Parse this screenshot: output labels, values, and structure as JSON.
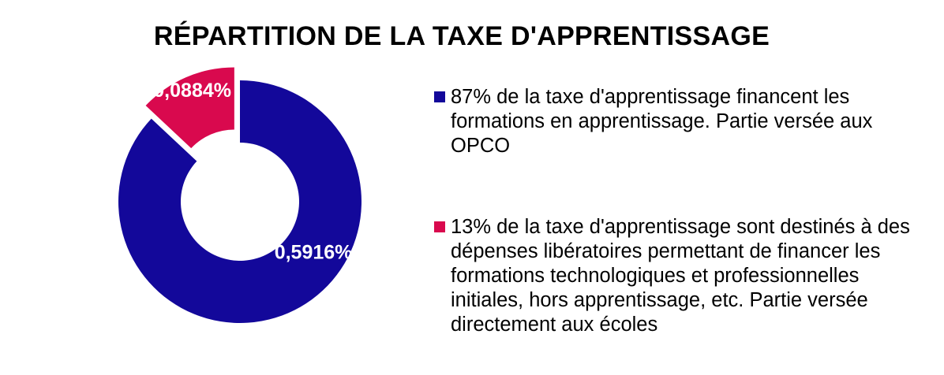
{
  "chart_data": {
    "type": "pie",
    "donut": true,
    "title": "RÉPARTITION DE LA TAXE D'APPRENTISSAGE",
    "legend_position": "right",
    "slices": [
      {
        "label": "0,5916%",
        "value": 87,
        "color": "#13089a",
        "exploded": false,
        "legend": "87% de la taxe d'apprentissage financent les formations en apprentissage. Partie versée aux OPCO"
      },
      {
        "label": "0,0884%",
        "value": 13,
        "color": "#d9094e",
        "exploded": true,
        "legend": "13% de la taxe d'apprentissage sont destinés à des dépenses libératoires permettant de financer les formations technologiques et professionnelles initiales, hors apprentissage, etc. Partie versée directement aux écoles"
      }
    ]
  }
}
